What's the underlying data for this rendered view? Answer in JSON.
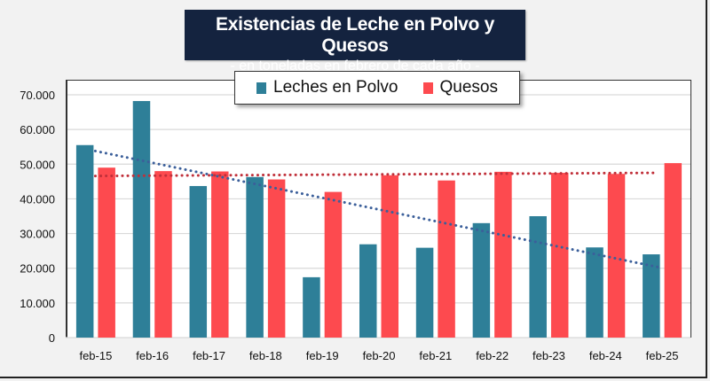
{
  "chart_data": {
    "type": "bar",
    "title": "Existencias de Leche en Polvo y Quesos",
    "subtitle": "- en toneladas en febrero de cada año -",
    "xlabel": "",
    "ylabel": "",
    "categories": [
      "feb-15",
      "feb-16",
      "feb-17",
      "feb-18",
      "feb-19",
      "feb-20",
      "feb-21",
      "feb-22",
      "feb-23",
      "feb-24",
      "feb-25"
    ],
    "series": [
      {
        "name": "Leches en Polvo",
        "color": "#2e7f98",
        "values": [
          55500,
          68200,
          43700,
          46300,
          17400,
          26900,
          25900,
          33000,
          35000,
          26000,
          24000
        ],
        "trendline": {
          "type": "linear",
          "style": "dotted",
          "color": "#3b5f9a",
          "start": 53800,
          "end": 20200,
          "x_range": [
            "feb-15",
            "feb-25"
          ]
        }
      },
      {
        "name": "Quesos",
        "color": "#fd4a4f",
        "values": [
          49000,
          48000,
          47900,
          45600,
          42000,
          46800,
          45300,
          47800,
          47500,
          47200,
          50300
        ],
        "trendline": {
          "type": "linear",
          "style": "dotted",
          "color": "#c0303a",
          "start": 46600,
          "end": 47500,
          "x_range": [
            "feb-15",
            "feb-25"
          ]
        }
      }
    ],
    "yticks": [
      "0",
      "10.000",
      "20.000",
      "30.000",
      "40.000",
      "50.000",
      "60.000",
      "70.000"
    ],
    "ylim": [
      0,
      70000
    ],
    "grid": true,
    "legend": "top-center"
  }
}
